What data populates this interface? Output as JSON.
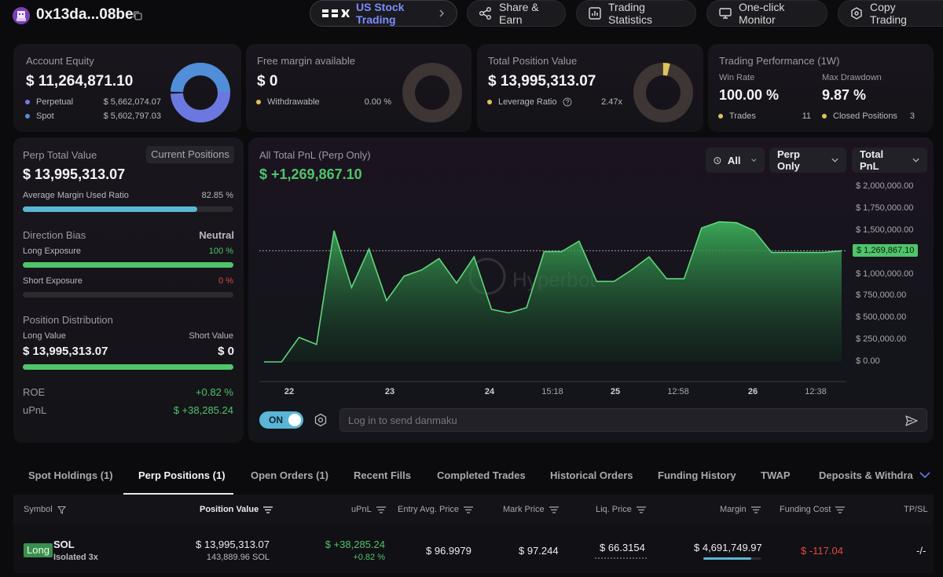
{
  "header": {
    "address": "0x13da...08be",
    "nav": [
      {
        "label": "US Stock Trading",
        "icon": "brand-logo-icon"
      },
      {
        "label": "Share & Earn",
        "icon": "share-icon"
      },
      {
        "label": "Trading Statistics",
        "icon": "stats-icon"
      },
      {
        "label": "One-click Monitor",
        "icon": "monitor-icon"
      },
      {
        "label": "Copy Trading",
        "icon": "copy-trading-icon"
      }
    ]
  },
  "account_equity": {
    "label": "Account Equity",
    "value": "$ 11,264,871.10",
    "rows": [
      {
        "label": "Perpetual",
        "value": "$ 5,662,074.07",
        "color": "#6f7ce0"
      },
      {
        "label": "Spot",
        "value": "$ 5,602,797.03",
        "color": "#4f8fd8"
      }
    ]
  },
  "free_margin": {
    "label": "Free margin available",
    "value": "$ 0",
    "row_label": "Withdrawable",
    "row_value": "0.00 %",
    "row_color": "#e0c35a"
  },
  "total_position": {
    "label": "Total Position Value",
    "value": "$ 13,995,313.07",
    "row_label": "Leverage Ratio",
    "row_value": "2.47x",
    "row_color": "#e0c35a"
  },
  "trading_performance": {
    "label": "Trading Performance (1W)",
    "win_rate_label": "Win Rate",
    "win_rate": "100.00 %",
    "max_drawdown_label": "Max Drawdown",
    "max_drawdown": "9.87 %",
    "trades_label": "Trades",
    "trades": "11",
    "closed_label": "Closed Positions",
    "closed": "3"
  },
  "perp_panel": {
    "label": "Perp Total Value",
    "button": "Current Positions",
    "value": "$ 13,995,313.07",
    "margin_label": "Average Margin Used Ratio",
    "margin_value": "82.85 %",
    "margin_ratio": 0.8285,
    "direction_label": "Direction Bias",
    "direction_value": "Neutral",
    "long_label": "Long Exposure",
    "long_value": "100 %",
    "long_ratio": 1.0,
    "short_label": "Short Exposure",
    "short_value": "0 %",
    "short_ratio": 0.0,
    "distribution_label": "Position Distribution",
    "long_value_label": "Long Value",
    "short_value_label": "Short Value",
    "long_value_amount": "$ 13,995,313.07",
    "short_value_amount": "$ 0",
    "long_share": 1.0,
    "roe_label": "ROE",
    "roe_value": "+0.82 %",
    "upnl_label": "uPnL",
    "upnl_value": "$ +38,285.24"
  },
  "pnl_chart": {
    "label": "All Total PnL (Perp Only)",
    "value": "$ +1,269,867.10",
    "dropdowns": [
      "All",
      "Perp Only",
      "Total PnL"
    ],
    "toggle": "ON",
    "danmaku_placeholder": "Log in to send danmaku",
    "watermark": "Hyperbot"
  },
  "chart_data": {
    "type": "area",
    "ylim": [
      0,
      2000000
    ],
    "y_tick_labels": [
      "$ 2,000,000.00",
      "$ 1,750,000.00",
      "$ 1,500,000.00",
      "$ 1,250,000.00",
      "$ 1,000,000.00",
      "$ 750,000.00",
      "$ 500,000.00",
      "$ 250,000.00",
      "$ 0.00"
    ],
    "y_tick_values": [
      2000000,
      1750000,
      1500000,
      1250000,
      1000000,
      750000,
      500000,
      250000,
      0
    ],
    "x_tick_labels": [
      {
        "label": "22",
        "bold": true
      },
      {
        "label": "23",
        "bold": true
      },
      {
        "label": "24",
        "bold": true
      },
      {
        "label": "15:18",
        "bold": false
      },
      {
        "label": "25",
        "bold": true
      },
      {
        "label": "12:58",
        "bold": false
      },
      {
        "label": "26",
        "bold": true
      },
      {
        "label": "12:38",
        "bold": false
      }
    ],
    "last_value_label": "$ 1,269,867.10",
    "last_value": 1269867.1,
    "values": [
      0,
      0,
      280000,
      200000,
      1500000,
      850000,
      1290000,
      700000,
      980000,
      1050000,
      1180000,
      900000,
      1200000,
      600000,
      560000,
      620000,
      1260000,
      1260000,
      1380000,
      920000,
      920000,
      1050000,
      1200000,
      950000,
      950000,
      1530000,
      1600000,
      1590000,
      1500000,
      1250000,
      1250000,
      1250000,
      1250000,
      1269867
    ]
  },
  "tabs": [
    "Spot Holdings (1)",
    "Perp Positions (1)",
    "Open Orders (1)",
    "Recent Fills",
    "Completed Trades",
    "Historical Orders",
    "Funding History",
    "TWAP",
    "Deposits & Withdrav"
  ],
  "table": {
    "headers": [
      "Symbol",
      "Position Value",
      "uPnL",
      "Entry Avg. Price",
      "Mark Price",
      "Liq. Price",
      "Margin",
      "Funding Cost",
      "TP/SL"
    ],
    "row": {
      "side": "Long",
      "symbol": "SOL",
      "mode": "Isolated 3x",
      "position_value": "$ 13,995,313.07",
      "position_size": "143,889.96 SOL",
      "upnl": "$ +38,285.24",
      "upnl_pct": "+0.82 %",
      "entry": "$ 96.9979",
      "mark": "$ 97.244",
      "liq": "$ 66.3154",
      "margin": "$ 4,691,749.97",
      "funding": "$ -117.04",
      "tpsl": "-/-"
    }
  },
  "colors": {
    "green": "#4fc46a",
    "red": "#e2473f",
    "cyan": "#5bb6d6",
    "equity_donut": "#6b78e0"
  }
}
